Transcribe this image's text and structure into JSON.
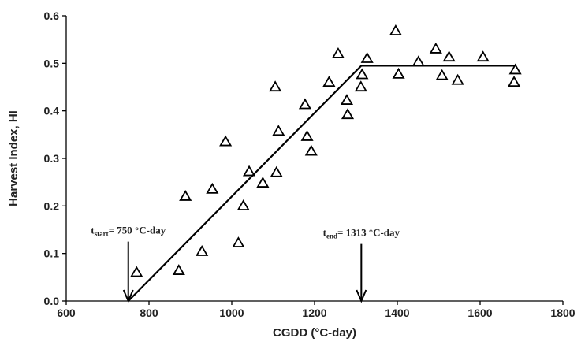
{
  "chart_data": {
    "type": "scatter",
    "title": "",
    "xlabel": "CGDD (°C-day)",
    "ylabel": "Harvest Index, HI",
    "xlim": [
      600,
      1800
    ],
    "ylim": [
      0.0,
      0.6
    ],
    "x_ticks": [
      600,
      800,
      1000,
      1200,
      1400,
      1600,
      1800
    ],
    "y_ticks": [
      0.0,
      0.1,
      0.2,
      0.3,
      0.4,
      0.5,
      0.6
    ],
    "x_tick_labels": [
      "600",
      "800",
      "1000",
      "1200",
      "1400",
      "1600",
      "1800"
    ],
    "y_tick_labels": [
      "0.0",
      "0.1",
      "0.2",
      "0.3",
      "0.4",
      "0.5",
      "0.6"
    ],
    "grid": false,
    "legend": "none",
    "series": [
      {
        "marker": "open-triangle",
        "x": [
          770,
          872,
          888,
          928,
          953,
          985,
          1016,
          1028,
          1042,
          1075,
          1105,
          1108,
          1113,
          1177,
          1182,
          1192,
          1235,
          1257,
          1278,
          1280,
          1312,
          1315,
          1327,
          1396,
          1403,
          1451,
          1493,
          1508,
          1525,
          1546,
          1607,
          1682,
          1685
        ],
        "y": [
          0.06,
          0.064,
          0.22,
          0.104,
          0.235,
          0.335,
          0.122,
          0.2,
          0.272,
          0.248,
          0.45,
          0.27,
          0.357,
          0.413,
          0.346,
          0.315,
          0.46,
          0.52,
          0.422,
          0.392,
          0.45,
          0.476,
          0.51,
          0.568,
          0.477,
          0.503,
          0.53,
          0.474,
          0.513,
          0.464,
          0.513,
          0.46,
          0.486
        ]
      },
      {
        "style": "line",
        "x": [
          750,
          1313,
          1685
        ],
        "y": [
          0.0,
          0.495,
          0.495
        ]
      }
    ],
    "annotations": [
      {
        "id": "start",
        "prefix": "t",
        "subscript": "start",
        "label": "= 750 °C-day",
        "x": 750,
        "arrow_top_y": 0.125,
        "arrow_bottom_y": 0.0
      },
      {
        "id": "end",
        "prefix": "t",
        "subscript": "end",
        "label": "= 1313 °C-day",
        "x": 1313,
        "arrow_top_y": 0.12,
        "arrow_bottom_y": 0.0
      }
    ]
  }
}
